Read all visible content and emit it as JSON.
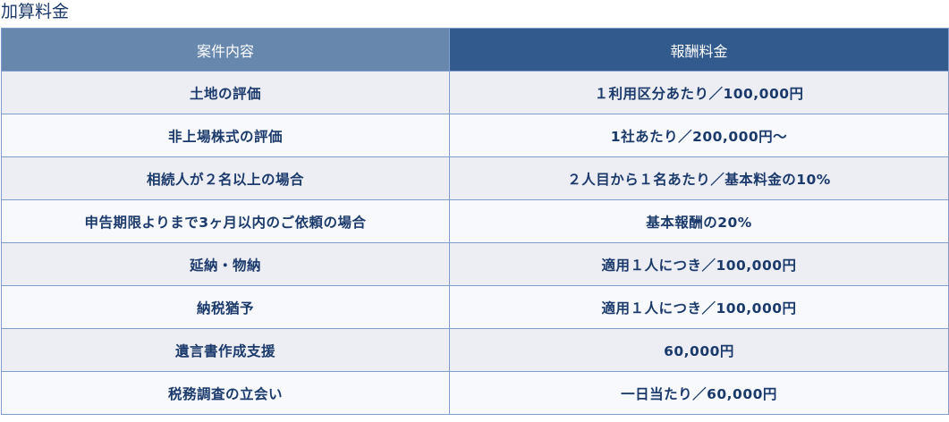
{
  "title": "加算料金",
  "table": {
    "headers": [
      "案件内容",
      "報酬料金"
    ],
    "rows": [
      [
        "土地の評価",
        "１利用区分あたり／100,000円"
      ],
      [
        "非上場株式の評価",
        "1社あたり／200,000円～"
      ],
      [
        "相続人が２名以上の場合",
        "２人目から１名あたり／基本料金の10%"
      ],
      [
        "申告期限よりまで3ヶ月以内のご依頼の場合",
        "基本報酬の20%"
      ],
      [
        "延納・物納",
        "適用１人につき／100,000円"
      ],
      [
        "納税猶予",
        "適用１人につき／100,000円"
      ],
      [
        "遺言書作成支援",
        "60,000円"
      ],
      [
        "税務調査の立会い",
        "一日当たり／60,000円"
      ]
    ]
  },
  "colors": {
    "header_left": "#6787ad",
    "header_right": "#325a8c",
    "text": "#1b3a6b",
    "border": "#7f9ccc"
  }
}
